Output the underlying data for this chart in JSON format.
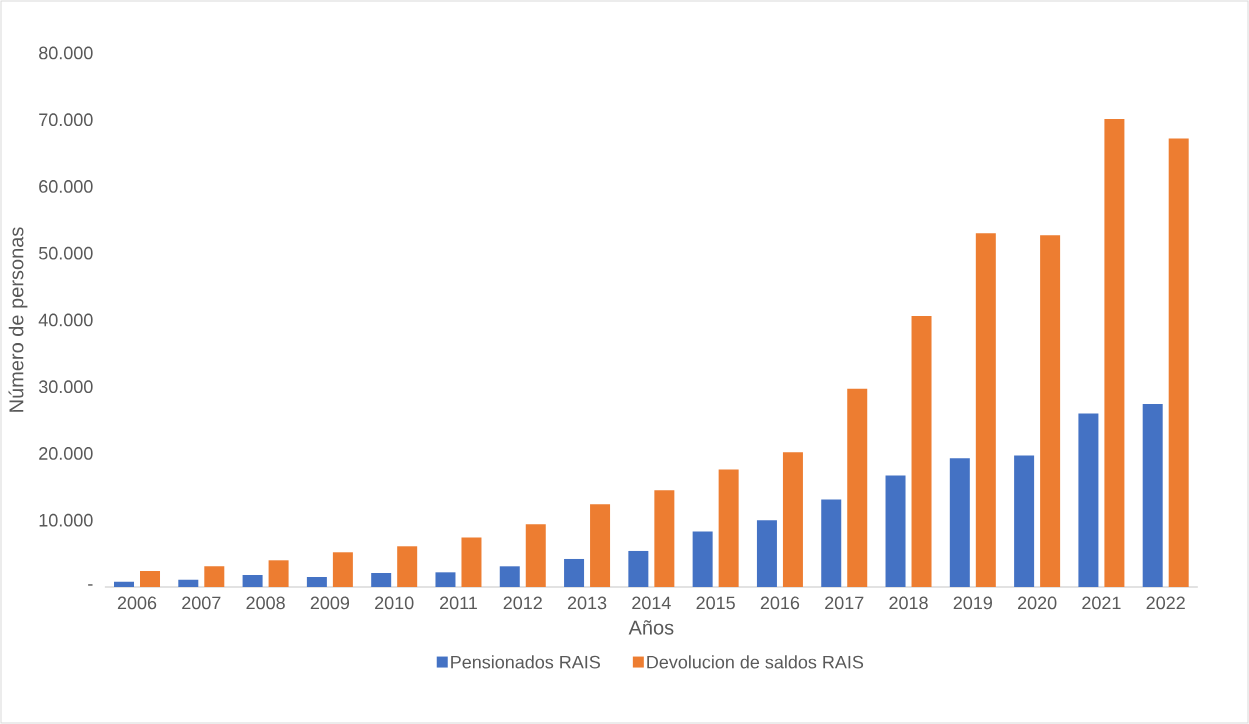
{
  "chart_data": {
    "type": "bar",
    "xlabel": "Años",
    "ylabel": "Número de personas",
    "categories": [
      "2006",
      "2007",
      "2008",
      "2009",
      "2010",
      "2011",
      "2012",
      "2013",
      "2014",
      "2015",
      "2016",
      "2017",
      "2018",
      "2019",
      "2020",
      "2021",
      "2022"
    ],
    "series": [
      {
        "name": "Pensionados RAIS",
        "color": "#4472c4",
        "values": [
          800,
          1100,
          1800,
          1500,
          2100,
          2200,
          3100,
          4200,
          5400,
          8300,
          10000,
          13100,
          16700,
          19300,
          19700,
          26000,
          27400
        ]
      },
      {
        "name": "Devolucion de saldos RAIS",
        "color": "#ed7d31",
        "values": [
          2400,
          3100,
          4000,
          5200,
          6100,
          7400,
          9400,
          12400,
          14500,
          17600,
          20200,
          29700,
          40600,
          53000,
          52700,
          70100,
          67200
        ]
      }
    ],
    "ylim": [
      0,
      80000
    ],
    "yticks": [
      {
        "value": 0,
        "label": "-"
      },
      {
        "value": 10000,
        "label": "10.000"
      },
      {
        "value": 20000,
        "label": "20.000"
      },
      {
        "value": 30000,
        "label": "30.000"
      },
      {
        "value": 40000,
        "label": "40.000"
      },
      {
        "value": 50000,
        "label": "50.000"
      },
      {
        "value": 60000,
        "label": "60.000"
      },
      {
        "value": 70000,
        "label": "70.000"
      },
      {
        "value": 80000,
        "label": "80.000"
      }
    ],
    "legend": "bottom"
  }
}
